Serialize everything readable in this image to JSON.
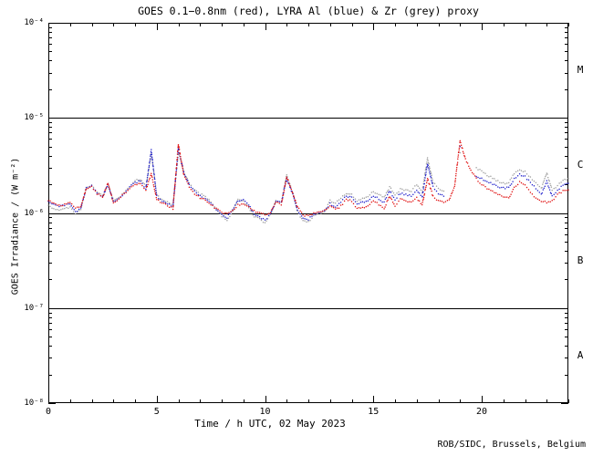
{
  "footer": {
    "credit": "ROB/SIDC, Brussels, Belgium"
  },
  "chart_data": {
    "type": "line",
    "style": "dotted",
    "title": "GOES 0.1−0.8nm (red), LYRA Al (blue) & Zr (grey) proxy",
    "xlabel": "Time / h UTC, 02 May 2023",
    "ylabel": "GOES Irradiance / (W m⁻²)",
    "yscale": "log",
    "xlim": [
      0,
      24
    ],
    "ylim": [
      1e-08,
      0.0001
    ],
    "x_tick_minor_step_hours": 1,
    "x_ticks": [
      {
        "value": 0,
        "label": "0"
      },
      {
        "value": 5,
        "label": "5"
      },
      {
        "value": 10,
        "label": "10"
      },
      {
        "value": 15,
        "label": "15"
      },
      {
        "value": 20,
        "label": "20"
      }
    ],
    "y_ticks": [
      {
        "value": 0.0001,
        "label": "10⁻⁴"
      },
      {
        "value": 1e-05,
        "label": "10⁻⁵"
      },
      {
        "value": 1e-06,
        "label": "10⁻⁶"
      },
      {
        "value": 1e-07,
        "label": "10⁻⁷"
      },
      {
        "value": 1e-08,
        "label": "10⁻⁸"
      }
    ],
    "hlines": [
      1e-05,
      1e-06,
      1e-07
    ],
    "flare_classes": [
      {
        "label": "M",
        "value": 3.16e-05
      },
      {
        "label": "C",
        "value": 3.16e-06
      },
      {
        "label": "B",
        "value": 3.16e-07
      },
      {
        "label": "A",
        "value": 3.16e-08
      }
    ],
    "x_step_hours": 0.25,
    "x_start_hour": 0,
    "series": [
      {
        "name": "LYRA Zr proxy",
        "color": "#9e9e9e",
        "values": [
          1.18e-06,
          1.12e-06,
          1.07e-06,
          1.1e-06,
          1.15e-06,
          9.9e-07,
          1.1e-06,
          1.84e-06,
          1.95e-06,
          1.65e-06,
          1.5e-06,
          2.02e-06,
          1.35e-06,
          1.43e-06,
          1.66e-06,
          1.9e-06,
          2.2e-06,
          2.28e-06,
          1.88e-06,
          4.2e-06,
          1.56e-06,
          1.38e-06,
          1.3e-06,
          1.2e-06,
          4.3e-06,
          2.75e-06,
          2.05e-06,
          1.73e-06,
          1.57e-06,
          1.5e-06,
          1.3e-06,
          1.12e-06,
          9.2e-07,
          8.4e-07,
          1.03e-06,
          1.4e-06,
          1.34e-06,
          1.14e-06,
          9.2e-07,
          8.6e-07,
          7.9e-07,
          9.6e-07,
          1.35e-06,
          1.3e-06,
          2.5e-06,
          1.72e-06,
          1.03e-06,
          8.3e-07,
          8.1e-07,
          9.3e-07,
          9.9e-07,
          1.03e-06,
          1.35e-06,
          1.25e-06,
          1.44e-06,
          1.62e-06,
          1.55e-06,
          1.35e-06,
          1.42e-06,
          1.5e-06,
          1.7e-06,
          1.55e-06,
          1.45e-06,
          1.88e-06,
          1.55e-06,
          1.78e-06,
          1.74e-06,
          1.7e-06,
          2e-06,
          1.65e-06,
          3.8e-06,
          2.1e-06,
          1.8e-06,
          1.7e-06,
          null,
          null,
          4.3e-06,
          null,
          null,
          2.95e-06,
          2.75e-06,
          2.52e-06,
          2.32e-06,
          2.15e-06,
          2.05e-06,
          2.1e-06,
          2.6e-06,
          2.9e-06,
          2.7e-06,
          2.35e-06,
          2.05e-06,
          1.8e-06,
          2.65e-06,
          1.75e-06,
          1.95e-06,
          2.2e-06,
          2.3e-06
        ]
      },
      {
        "name": "LYRA Al proxy",
        "color": "#2222cc",
        "values": [
          1.32e-06,
          1.24e-06,
          1.17e-06,
          1.2e-06,
          1.26e-06,
          1.03e-06,
          1.13e-06,
          1.82e-06,
          1.92e-06,
          1.62e-06,
          1.47e-06,
          2e-06,
          1.32e-06,
          1.4e-06,
          1.63e-06,
          1.86e-06,
          2.1e-06,
          2.15e-06,
          1.82e-06,
          4.6e-06,
          1.5e-06,
          1.33e-06,
          1.26e-06,
          1.15e-06,
          4.8e-06,
          2.65e-06,
          2e-06,
          1.68e-06,
          1.52e-06,
          1.42e-06,
          1.26e-06,
          1.1e-06,
          9.6e-07,
          9e-07,
          1.08e-06,
          1.35e-06,
          1.38e-06,
          1.2e-06,
          9.8e-07,
          9e-07,
          8.4e-07,
          9.8e-07,
          1.32e-06,
          1.28e-06,
          2.3e-06,
          1.65e-06,
          1.08e-06,
          8.8e-07,
          8.6e-07,
          9.6e-07,
          1.02e-06,
          1.05e-06,
          1.25e-06,
          1.15e-06,
          1.3e-06,
          1.52e-06,
          1.45e-06,
          1.25e-06,
          1.3e-06,
          1.35e-06,
          1.52e-06,
          1.4e-06,
          1.3e-06,
          1.7e-06,
          1.4e-06,
          1.6e-06,
          1.57e-06,
          1.5e-06,
          1.75e-06,
          1.45e-06,
          3.3e-06,
          1.9e-06,
          1.6e-06,
          1.5e-06,
          null,
          null,
          5e-06,
          null,
          null,
          2.45e-06,
          2.3e-06,
          2.15e-06,
          2e-06,
          1.9e-06,
          1.82e-06,
          1.85e-06,
          2.3e-06,
          2.55e-06,
          2.4e-06,
          2.1e-06,
          1.8e-06,
          1.55e-06,
          2.15e-06,
          1.5e-06,
          1.72e-06,
          1.95e-06,
          2.05e-06
        ]
      },
      {
        "name": "GOES 0.1-0.8nm",
        "color": "#e01010",
        "values": [
          1.35e-06,
          1.26e-06,
          1.19e-06,
          1.22e-06,
          1.29e-06,
          1.12e-06,
          1.16e-06,
          1.8e-06,
          1.9e-06,
          1.6e-06,
          1.45e-06,
          2.05e-06,
          1.3e-06,
          1.38e-06,
          1.6e-06,
          1.82e-06,
          2e-06,
          2.05e-06,
          1.75e-06,
          2.6e-06,
          1.4e-06,
          1.27e-06,
          1.2e-06,
          1.1e-06,
          5.3e-06,
          2.5e-06,
          1.9e-06,
          1.6e-06,
          1.45e-06,
          1.38e-06,
          1.22e-06,
          1.1e-06,
          1.02e-06,
          9.8e-07,
          1.05e-06,
          1.22e-06,
          1.25e-06,
          1.15e-06,
          1.05e-06,
          1e-06,
          9.6e-07,
          1e-06,
          1.3e-06,
          1.22e-06,
          2.4e-06,
          1.7e-06,
          1.15e-06,
          9.5e-07,
          9.3e-07,
          1e-06,
          1.04e-06,
          1.06e-06,
          1.2e-06,
          1.08e-06,
          1.18e-06,
          1.4e-06,
          1.33e-06,
          1.12e-06,
          1.15e-06,
          1.18e-06,
          1.35e-06,
          1.22e-06,
          1.12e-06,
          1.5e-06,
          1.18e-06,
          1.4e-06,
          1.36e-06,
          1.28e-06,
          1.45e-06,
          1.2e-06,
          2.3e-06,
          1.5e-06,
          1.35e-06,
          1.3e-06,
          1.35e-06,
          1.9e-06,
          5.7e-06,
          3.7e-06,
          2.85e-06,
          2.3e-06,
          2e-06,
          1.82e-06,
          1.68e-06,
          1.56e-06,
          1.48e-06,
          1.45e-06,
          1.85e-06,
          2.1e-06,
          1.95e-06,
          1.65e-06,
          1.45e-06,
          1.32e-06,
          1.3e-06,
          1.35e-06,
          1.55e-06,
          1.7e-06,
          1.75e-06
        ]
      }
    ]
  }
}
